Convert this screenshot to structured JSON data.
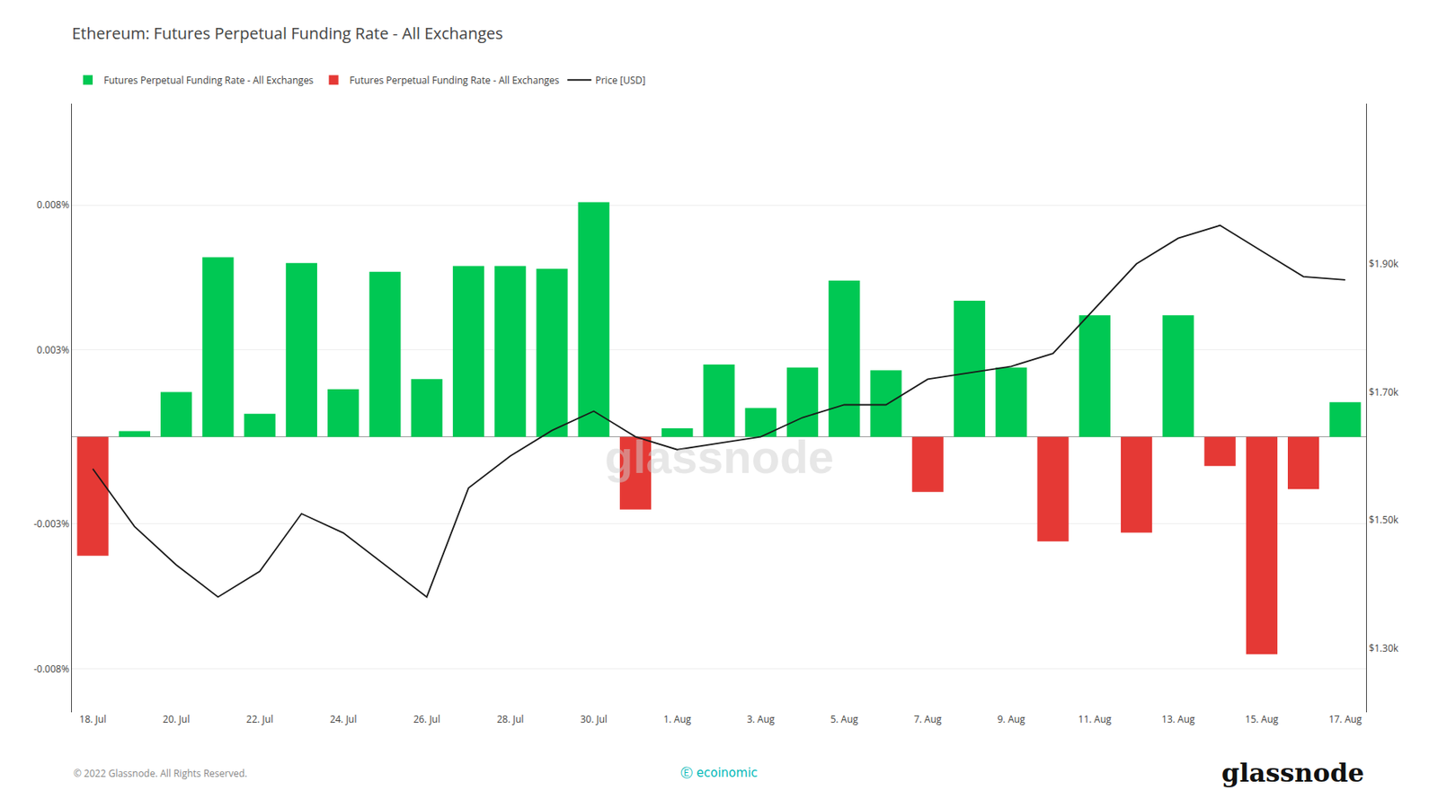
{
  "chart_data": {
    "type": "bar",
    "title": "Ethereum: Futures Perpetual Funding Rate - All Exchanges",
    "categories": [
      "18. Jul",
      null,
      "20. Jul",
      null,
      "22. Jul",
      null,
      "24. Jul",
      null,
      "26. Jul",
      null,
      "28. Jul",
      null,
      "30. Jul",
      null,
      "1. Aug",
      null,
      "3. Aug",
      null,
      "5. Aug",
      null,
      "7. Aug",
      null,
      "9. Aug",
      null,
      "11. Aug",
      null,
      "13. Aug",
      null,
      "15. Aug",
      null,
      "17. Aug"
    ],
    "series": [
      {
        "name": "Futures Perpetual Funding Rate - All Exchanges",
        "type": "bar",
        "color": "#00c853",
        "values": [
          null,
          0.0002,
          0.00155,
          0.0062,
          0.0008,
          0.006,
          0.00165,
          0.0057,
          0.002,
          0.0059,
          0.0059,
          0.0058,
          0.0081,
          null,
          0.0003,
          0.0025,
          0.001,
          0.0024,
          0.0054,
          0.0023,
          null,
          0.0047,
          0.0024,
          null,
          0.0042,
          null,
          0.0042,
          null,
          null,
          null,
          0.0012
        ]
      },
      {
        "name": "Futures Perpetual Funding Rate - All Exchanges",
        "type": "bar",
        "color": "#e53935",
        "values": [
          -0.0041,
          null,
          null,
          null,
          null,
          null,
          null,
          null,
          null,
          null,
          null,
          null,
          null,
          -0.0025,
          null,
          null,
          null,
          null,
          null,
          null,
          -0.0019,
          null,
          null,
          -0.0036,
          null,
          -0.0033,
          null,
          -0.001,
          -0.0075,
          -0.0018,
          null
        ]
      },
      {
        "name": "Price [USD]",
        "type": "line",
        "axis": "y2",
        "color": "#1a1a1a",
        "values": [
          1580,
          1490,
          1430,
          1380,
          1420,
          1510,
          1480,
          1430,
          1380,
          1550,
          1600,
          1640,
          1670,
          1630,
          1610,
          1620,
          1630,
          1660,
          1680,
          1680,
          1720,
          1730,
          1740,
          1760,
          1830,
          1900,
          1940,
          1960,
          1920,
          1880,
          1875
        ]
      }
    ],
    "ylim": [
      -0.0095,
      0.0115
    ],
    "yticks": [
      {
        "value": -0.008,
        "label": "-0.008%"
      },
      {
        "value": -0.003,
        "label": "-0.003%"
      },
      {
        "value": 0.003,
        "label": "0.003%"
      },
      {
        "value": 0.008,
        "label": "0.008%"
      }
    ],
    "y2lim": [
      1200,
      2150
    ],
    "y2ticks": [
      {
        "value": 1300,
        "label": "$1.30k"
      },
      {
        "value": 1500,
        "label": "$1.50k"
      },
      {
        "value": 1700,
        "label": "$1.70k"
      },
      {
        "value": 1900,
        "label": "$1.90k"
      }
    ],
    "grid": true,
    "legend": "top",
    "annotations": [
      "glassnode",
      "© 2022 Glassnode. All Rights Reserved.",
      "Ⓔ ecoinomic",
      "glassnode"
    ]
  }
}
